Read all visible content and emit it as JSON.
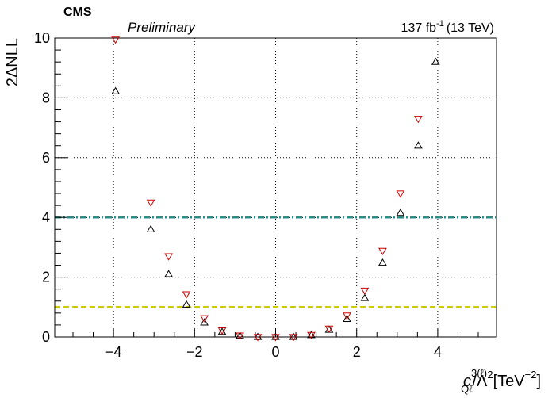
{
  "header": {
    "experiment": "CMS",
    "status": "Preliminary",
    "lumi_value": "137 fb",
    "lumi_exponent": "-1",
    "energy": "(13 TeV)"
  },
  "chart_data": {
    "type": "scatter",
    "title": "",
    "ylabel": "2ΔNLL",
    "xlabel": {
      "symbol": "c",
      "superscript": "3(ℓ)",
      "subscript": "Qℓ",
      "rest": "/Λ",
      "rest_sup": "2",
      "unit": "[TeV",
      "unit_sup": "−2",
      "unit_close": "]"
    },
    "xlim": [
      -5.45,
      5.45
    ],
    "ylim": [
      0,
      10
    ],
    "x_ticks": [
      -4,
      -2,
      0,
      2,
      4
    ],
    "x_tick_labels": [
      "−4",
      "−2",
      "0",
      "2",
      "4"
    ],
    "y_ticks": [
      0,
      2,
      4,
      6,
      8,
      10
    ],
    "y_tick_labels": [
      "0",
      "2",
      "4",
      "6",
      "8",
      "10"
    ],
    "grid": true,
    "reference_lines": [
      {
        "y": 4,
        "color": "#2e8b8b",
        "style": "dash-dot"
      },
      {
        "y": 1,
        "color": "#cccc00",
        "style": "dashed"
      }
    ],
    "series": [
      {
        "marker": "triangle-up-open",
        "color": "#000000",
        "points": [
          {
            "x": -3.95,
            "y": 8.22
          },
          {
            "x": -3.08,
            "y": 3.6
          },
          {
            "x": -2.64,
            "y": 2.1
          },
          {
            "x": -2.2,
            "y": 1.08
          },
          {
            "x": -1.76,
            "y": 0.48
          },
          {
            "x": -1.32,
            "y": 0.17
          },
          {
            "x": -0.88,
            "y": 0.04
          },
          {
            "x": -0.44,
            "y": 0.0
          },
          {
            "x": 0.0,
            "y": 0.0
          },
          {
            "x": 0.44,
            "y": 0.0
          },
          {
            "x": 0.88,
            "y": 0.06
          },
          {
            "x": 1.32,
            "y": 0.24
          },
          {
            "x": 1.76,
            "y": 0.6
          },
          {
            "x": 2.2,
            "y": 1.3
          },
          {
            "x": 2.64,
            "y": 2.48
          },
          {
            "x": 3.08,
            "y": 4.15
          },
          {
            "x": 3.52,
            "y": 6.4
          },
          {
            "x": 3.95,
            "y": 9.2
          }
        ]
      },
      {
        "marker": "triangle-down-open",
        "color": "#cc0000",
        "points": [
          {
            "x": -3.95,
            "y": 9.95
          },
          {
            "x": -3.08,
            "y": 4.5
          },
          {
            "x": -2.64,
            "y": 2.7
          },
          {
            "x": -2.2,
            "y": 1.43
          },
          {
            "x": -1.76,
            "y": 0.63
          },
          {
            "x": -1.32,
            "y": 0.22
          },
          {
            "x": -0.88,
            "y": 0.05
          },
          {
            "x": -0.44,
            "y": 0.0
          },
          {
            "x": 0.0,
            "y": 0.0
          },
          {
            "x": 0.44,
            "y": 0.0
          },
          {
            "x": 0.88,
            "y": 0.07
          },
          {
            "x": 1.32,
            "y": 0.28
          },
          {
            "x": 1.76,
            "y": 0.72
          },
          {
            "x": 2.2,
            "y": 1.55
          },
          {
            "x": 2.64,
            "y": 2.88
          },
          {
            "x": 3.08,
            "y": 4.8
          },
          {
            "x": 3.52,
            "y": 7.3
          }
        ]
      }
    ]
  }
}
